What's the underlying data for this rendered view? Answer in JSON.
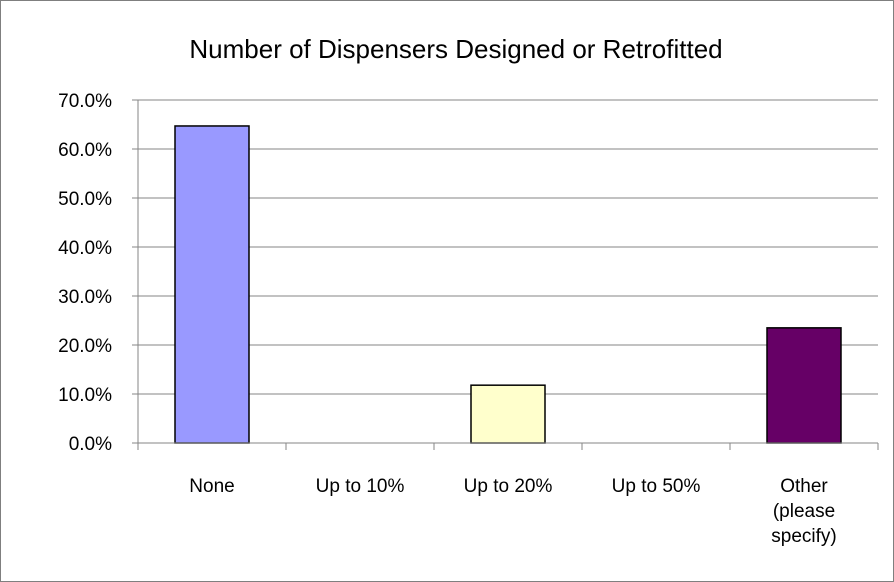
{
  "chart_data": {
    "type": "bar",
    "title": "Number of Dispensers Designed or Retrofitted",
    "xlabel": "",
    "ylabel": "",
    "categories": [
      "None",
      "Up to 10%",
      "Up to 20%",
      "Up to 50%",
      "Other (please specify)"
    ],
    "category_lines": [
      [
        "None"
      ],
      [
        "Up to 10%"
      ],
      [
        "Up to 20%"
      ],
      [
        "Up to 50%"
      ],
      [
        "Other",
        "(please",
        "specify)"
      ]
    ],
    "values": [
      64.7,
      0,
      11.8,
      0,
      23.5
    ],
    "colors": [
      "#9999ff",
      "#ffffcc",
      "#ffffcc",
      "#ffffcc",
      "#660066"
    ],
    "ylim": [
      0,
      70
    ],
    "yticks": [
      0,
      10,
      20,
      30,
      40,
      50,
      60,
      70
    ],
    "ytick_labels": [
      "0.0%",
      "10.0%",
      "20.0%",
      "30.0%",
      "40.0%",
      "50.0%",
      "60.0%",
      "70.0%"
    ],
    "grid": true,
    "legend": "none"
  }
}
